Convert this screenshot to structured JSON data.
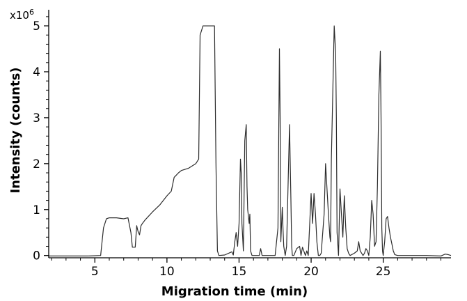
{
  "chart_data": {
    "type": "line",
    "title": "",
    "xlabel": "Migration time (min)",
    "ylabel": "Intensity (counts)",
    "y_multiplier": "x10",
    "y_multiplier_exp": "6",
    "xlim": [
      1.8,
      29.7
    ],
    "ylim": [
      -0.05,
      5.35
    ],
    "x_ticks": [
      5,
      10,
      15,
      20,
      25
    ],
    "y_ticks": [
      0,
      1,
      2,
      3,
      4,
      5
    ],
    "x_tick_labels": [
      "5",
      "10",
      "15",
      "20",
      "25"
    ],
    "y_tick_labels": [
      "0",
      "1",
      "2",
      "3",
      "4",
      "5"
    ],
    "grid": false,
    "legend": "none",
    "line_color": "#2b2b2b",
    "series": [
      {
        "x": [
          1.8,
          3.0,
          4.5,
          5.4,
          5.6,
          5.8,
          6.0,
          6.5,
          7.0,
          7.3,
          7.5,
          7.6,
          7.8,
          7.9,
          8.0,
          8.1,
          8.2,
          8.3,
          8.5,
          9.0,
          9.5,
          10.0,
          10.3,
          10.5,
          10.8,
          11.0,
          11.5,
          12.0,
          12.2,
          12.3,
          12.5,
          13.0,
          13.3,
          13.4,
          13.5,
          13.6,
          14.0,
          14.5,
          14.6,
          14.7,
          14.8,
          14.9,
          15.0,
          15.1,
          15.15,
          15.2,
          15.3,
          15.4,
          15.5,
          15.55,
          15.6,
          15.7,
          15.75,
          15.8,
          15.9,
          16.0,
          16.4,
          16.5,
          16.6,
          17.0,
          17.5,
          17.7,
          17.8,
          17.85,
          17.9,
          18.0,
          18.05,
          18.1,
          18.2,
          18.3,
          18.5,
          18.6,
          18.65,
          18.7,
          18.8,
          19.0,
          19.2,
          19.3,
          19.4,
          19.6,
          19.7,
          19.8,
          20.0,
          20.1,
          20.2,
          20.3,
          20.4,
          20.5,
          20.6,
          20.7,
          20.9,
          21.0,
          21.2,
          21.3,
          21.35,
          21.4,
          21.5,
          21.6,
          21.7,
          21.75,
          21.8,
          21.9,
          22.0,
          22.1,
          22.2,
          22.3,
          22.4,
          22.5,
          22.6,
          22.7,
          23.0,
          23.2,
          23.3,
          23.4,
          23.5,
          23.6,
          23.7,
          23.8,
          23.9,
          24.0,
          24.1,
          24.2,
          24.3,
          24.4,
          24.5,
          24.6,
          24.7,
          24.8,
          24.85,
          24.9,
          24.95,
          25.0,
          25.1,
          25.2,
          25.3,
          25.4,
          25.5,
          25.6,
          25.7,
          25.8,
          26.0,
          26.5,
          27.0,
          28.0,
          29.0,
          29.3,
          29.5,
          29.7
        ],
        "y": [
          -0.01,
          -0.01,
          -0.01,
          0.0,
          0.6,
          0.8,
          0.82,
          0.82,
          0.8,
          0.82,
          0.5,
          0.18,
          0.18,
          0.65,
          0.52,
          0.45,
          0.65,
          0.7,
          0.78,
          0.95,
          1.1,
          1.3,
          1.4,
          1.7,
          1.8,
          1.85,
          1.9,
          2.0,
          2.1,
          4.8,
          5.0,
          5.0,
          5.0,
          2.0,
          0.1,
          0.0,
          0.01,
          0.08,
          0.01,
          0.28,
          0.5,
          0.2,
          0.7,
          2.1,
          1.8,
          0.7,
          0.1,
          2.5,
          2.85,
          1.5,
          1.0,
          0.7,
          0.9,
          0.1,
          0.0,
          0.0,
          0.0,
          0.15,
          0.0,
          0.0,
          0.0,
          0.6,
          4.5,
          3.0,
          0.3,
          1.05,
          0.6,
          0.2,
          0.0,
          0.2,
          2.85,
          1.2,
          0.2,
          0.0,
          0.0,
          0.15,
          0.2,
          0.0,
          0.18,
          0.0,
          0.1,
          0.0,
          1.35,
          0.7,
          1.35,
          0.9,
          0.3,
          0.0,
          0.0,
          0.05,
          0.9,
          2.0,
          0.9,
          0.4,
          0.3,
          2.1,
          3.5,
          5.0,
          4.4,
          3.0,
          0.5,
          0.0,
          1.45,
          0.9,
          0.4,
          1.3,
          0.6,
          0.15,
          0.05,
          0.0,
          0.05,
          0.1,
          0.3,
          0.1,
          0.05,
          0.0,
          0.05,
          0.15,
          0.1,
          0.0,
          0.4,
          1.2,
          0.9,
          0.2,
          0.3,
          1.5,
          3.5,
          4.45,
          3.0,
          0.6,
          0.1,
          0.0,
          0.3,
          0.8,
          0.85,
          0.6,
          0.4,
          0.25,
          0.1,
          0.02,
          0.0,
          0.0,
          0.0,
          0.0,
          -0.01,
          0.03,
          0.02,
          0.0
        ]
      }
    ]
  }
}
